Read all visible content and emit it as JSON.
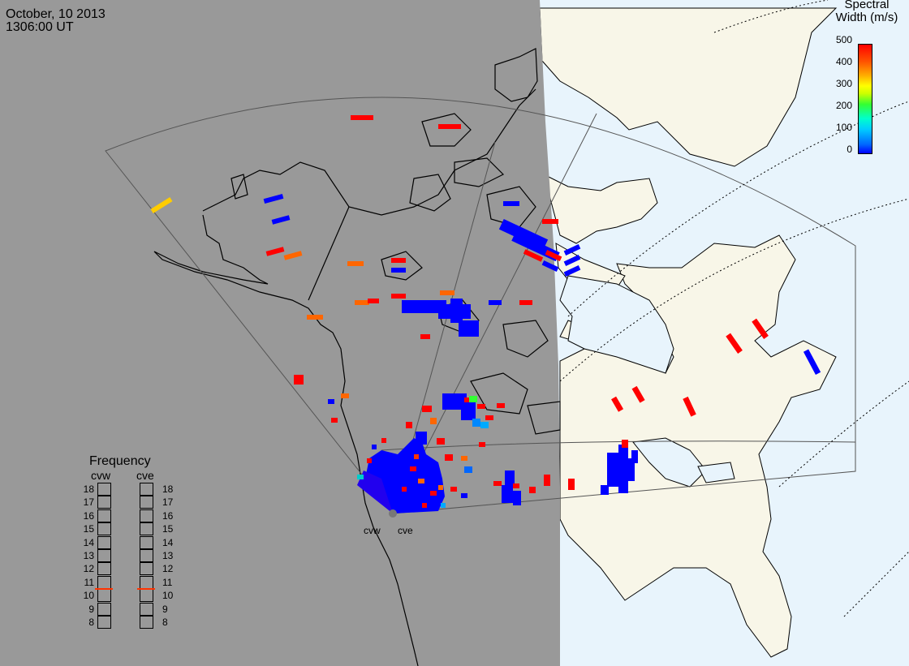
{
  "header": {
    "date": "October, 10 2013",
    "time": "1306:00 UT"
  },
  "colorbar": {
    "title_line1": "Spectral",
    "title_line2": "Width (m/s)",
    "ticks": [
      "500",
      "400",
      "300",
      "200",
      "100",
      "0"
    ],
    "colors": [
      "#0000ff",
      "#00ccff",
      "#33ff33",
      "#ffff00",
      "#ff8800",
      "#ff0000"
    ]
  },
  "frequency": {
    "title": "Frequency",
    "radars": [
      "cvw",
      "cve"
    ],
    "scale": [
      "18",
      "17",
      "16",
      "15",
      "14",
      "13",
      "12",
      "11",
      "10",
      "9",
      "8"
    ],
    "selected_mhz": [
      10.6,
      10.6
    ]
  },
  "stations": [
    "cvw",
    "cve"
  ],
  "colors": {
    "night": "#999999",
    "land": "#f8f6e8",
    "ocean": "#e8f4fc"
  }
}
